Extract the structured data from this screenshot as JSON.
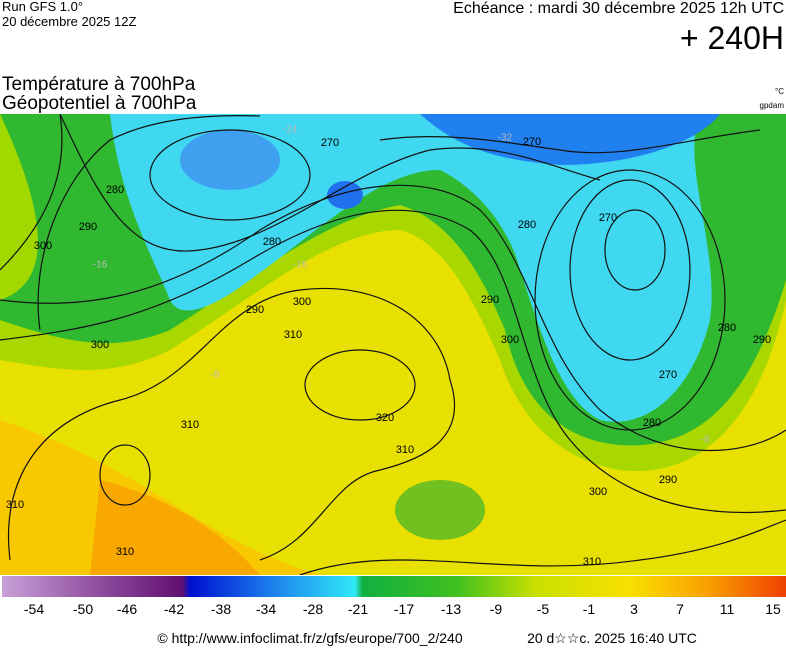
{
  "header": {
    "run": "Run GFS 1.0°",
    "run_date": "20 décembre 2025 12Z",
    "forecast_time": "Echéance : mardi 30 décembre 2025 12h UTC",
    "lead": "+ 240H",
    "title_line1": "Température à 700hPa",
    "title_line2": "Géopotentiel à 700hPa",
    "unit_temp": "°C",
    "unit_geo": "gpdam"
  },
  "map": {
    "contour_labels": [
      "280",
      "270",
      "280",
      "290",
      "300",
      "310",
      "320",
      "310",
      "310",
      "310",
      "310",
      "300",
      "290",
      "280",
      "270",
      "280",
      "290",
      "270",
      "270",
      "280",
      "290",
      "300",
      "300",
      "290",
      "310",
      "300"
    ],
    "temp_labels": [
      "-24",
      "-32",
      "-16",
      "-16",
      "-8",
      "-8"
    ]
  },
  "colorbar": {
    "labels": [
      -54,
      -50,
      -46,
      -42,
      -38,
      -34,
      -28,
      -21,
      -17,
      -13,
      -9,
      -5,
      -1,
      3,
      7,
      11,
      15
    ]
  },
  "footer": {
    "url": "© http://www.infoclimat.fr/z/gfs/europe/700_2/240",
    "generated": "20 d☆☆c. 2025 16:40 UTC"
  }
}
